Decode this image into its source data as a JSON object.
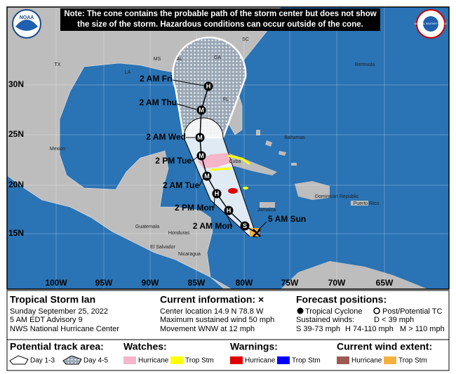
{
  "note": [
    "Note: The cone contains the probable path of the storm center but does not show",
    "the size of the storm. Hazardous conditions can occur outside of the cone."
  ],
  "logos": {
    "noaa": "NOAA",
    "nws": "NATIONAL WEATHER SERVICE"
  },
  "map": {
    "lat_labels": [
      "30N",
      "25N",
      "20N",
      "15N"
    ],
    "lon_labels": [
      "100W",
      "95W",
      "90W",
      "85W",
      "80W",
      "75W",
      "70W",
      "65W"
    ],
    "places": [
      "TX",
      "LA",
      "MS",
      "AL",
      "GA",
      "SC",
      "FL",
      "Bermuda",
      "Mexico",
      "Bahamas",
      "Cuba",
      "Dominican Republic",
      "Puerto Rico",
      "Jamaica",
      "Guatemala",
      "Honduras",
      "El Salvador",
      "Nicaragua"
    ],
    "track_markers": [
      "H",
      "M",
      "M",
      "M",
      "M",
      "H",
      "H",
      "S"
    ],
    "track_labels": [
      "2 AM Fri",
      "2 AM Thu",
      "2 AM Wed",
      "2 PM Tue",
      "2 AM Tue",
      "2 PM Mon",
      "2 AM Mon",
      "5 AM Sun"
    ]
  },
  "info": {
    "title": "Tropical Storm Ian",
    "lines": [
      "Sunday September 25, 2022",
      "5 AM EDT Advisory 9",
      "NWS National Hurricane Center"
    ],
    "current_heading": "Current information: ×",
    "current_lines": [
      "Center location 14.9 N 78.8 W",
      "Maximum sustained wind 50 mph",
      "Movement WNW at 12 mph"
    ],
    "forecast_heading": "Forecast positions:",
    "tropical_cyclone": "Tropical Cyclone",
    "post_tc": "Post/Potential TC",
    "winds_heading": "Sustained winds:",
    "wind_classes": [
      "D < 39 mph",
      "S 39-73 mph",
      "H 74-110 mph",
      "M > 110 mph"
    ]
  },
  "legend": {
    "track_heading": "Potential track area:",
    "day13": "Day 1-3",
    "day45": "Day 4-5",
    "watches_heading": "Watches:",
    "watch_items": [
      "Hurricane",
      "Trop Stm"
    ],
    "warnings_heading": "Warnings:",
    "warning_items": [
      "Hurricane",
      "Trop Stm"
    ],
    "wind_heading": "Current wind extent:",
    "wind_items": [
      "Hurricane",
      "Trop Stm"
    ]
  }
}
